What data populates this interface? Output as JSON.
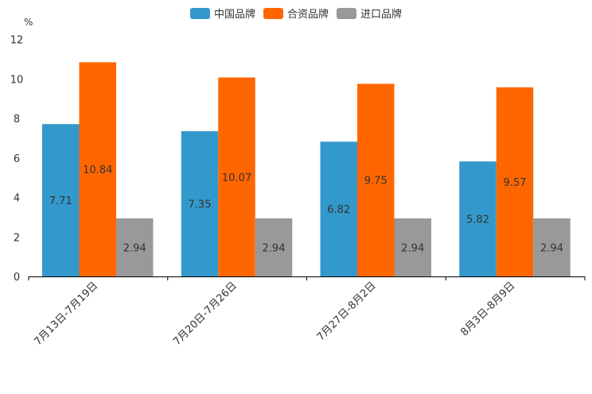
{
  "chart_data": {
    "type": "bar",
    "unit": "%",
    "categories": [
      "7月13日-7月19日",
      "7月20日-7月26日",
      "7月27日-8月2日",
      "8月3日-8月9日"
    ],
    "series": [
      {
        "name": "中国品牌",
        "color": "#3399cc",
        "values": [
          7.71,
          7.35,
          6.82,
          5.82
        ]
      },
      {
        "name": "合资品牌",
        "color": "#ff6600",
        "values": [
          10.84,
          10.07,
          9.75,
          9.57
        ]
      },
      {
        "name": "进口品牌",
        "color": "#999999",
        "values": [
          2.94,
          2.94,
          2.94,
          2.94
        ]
      }
    ],
    "value_labels": [
      [
        "7.71",
        "7.35",
        "6.82",
        "5.82"
      ],
      [
        "10.84",
        "10.07",
        "9.75",
        "9.57"
      ],
      [
        "2.94",
        "2.94",
        "2.94",
        "2.94"
      ]
    ],
    "y_ticks": [
      "0",
      "2",
      "4",
      "6",
      "8",
      "10",
      "12"
    ],
    "ylim": [
      0,
      12
    ],
    "legend_position": "top-center",
    "grid": false
  }
}
